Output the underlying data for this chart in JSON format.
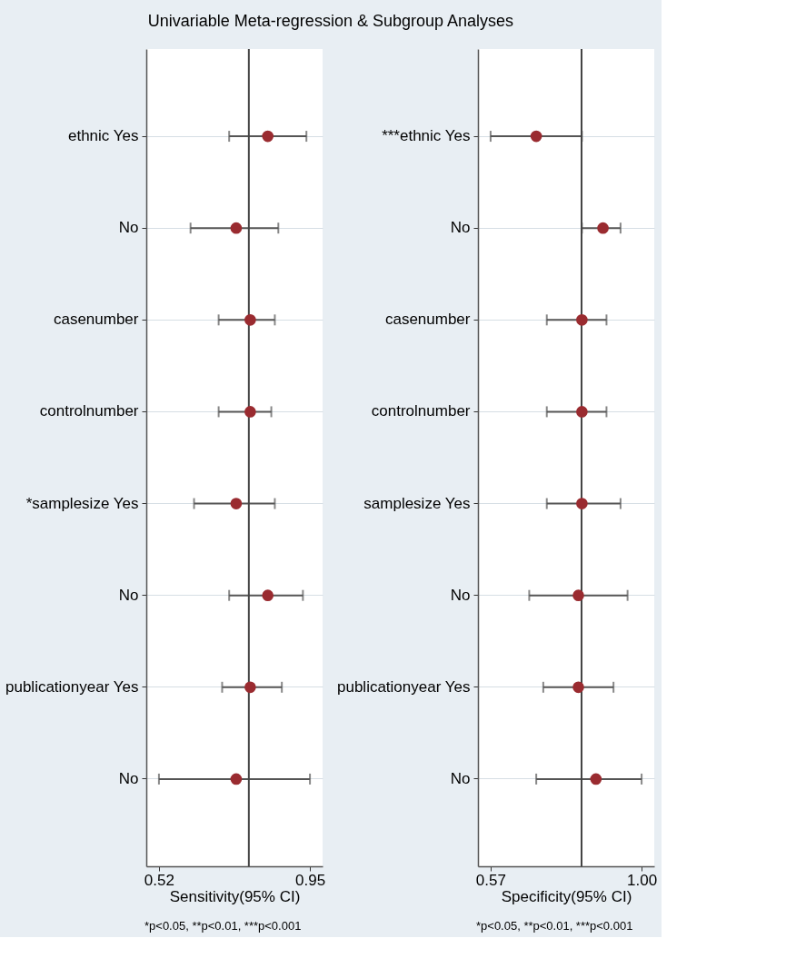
{
  "chart_data": [
    {
      "type": "scatter",
      "orientation": "horizontal",
      "title": "Univariable Meta-regression & Subgroup Analyses",
      "xlabel": "Sensitivity(95% CI)",
      "categories": [
        "ethnic Yes",
        "No",
        "casenumber",
        "controlnumber",
        "*samplesize Yes",
        "No",
        "publicationyear Yes",
        "No"
      ],
      "color": "#9a2b30",
      "values": [
        0.83,
        0.74,
        0.78,
        0.78,
        0.74,
        0.83,
        0.78,
        0.74
      ],
      "errors": [
        [
          0.72,
          0.94
        ],
        [
          0.61,
          0.86
        ],
        [
          0.69,
          0.85
        ],
        [
          0.69,
          0.84
        ],
        [
          0.62,
          0.85
        ],
        [
          0.72,
          0.93
        ],
        [
          0.7,
          0.87
        ],
        [
          0.52,
          0.95
        ]
      ],
      "xlim": [
        0.484,
        0.986
      ],
      "xticks": [
        0.52,
        0.95
      ],
      "ref_lines": [
        {
          "axis": "x",
          "value": 0.776
        }
      ],
      "grid": "y",
      "marker": "circle",
      "annotations": [
        "*p<0.05, **p<0.01, ***p<0.001"
      ]
    },
    {
      "type": "scatter",
      "orientation": "horizontal",
      "xlabel": "Specificity(95% CI)",
      "categories": [
        "***ethnic Yes",
        "No",
        "casenumber",
        "controlnumber",
        "samplesize Yes",
        "No",
        "publicationyear Yes",
        "No"
      ],
      "color": "#9a2b30",
      "values": [
        0.7,
        0.89,
        0.83,
        0.83,
        0.83,
        0.82,
        0.82,
        0.87
      ],
      "errors": [
        [
          0.57,
          0.83
        ],
        [
          0.83,
          0.94
        ],
        [
          0.73,
          0.9
        ],
        [
          0.73,
          0.9
        ],
        [
          0.73,
          0.94
        ],
        [
          0.68,
          0.96
        ],
        [
          0.72,
          0.92
        ],
        [
          0.7,
          1.0
        ]
      ],
      "xlim": [
        0.534,
        1.036
      ],
      "xticks": [
        0.57,
        {
          "value": 1.0,
          "label": "1.00"
        }
      ],
      "ref_lines": [
        {
          "axis": "x",
          "value": 0.829
        }
      ],
      "grid": "y",
      "marker": "circle",
      "annotations": [
        "*p<0.05, **p<0.01, ***p<0.001"
      ]
    }
  ]
}
